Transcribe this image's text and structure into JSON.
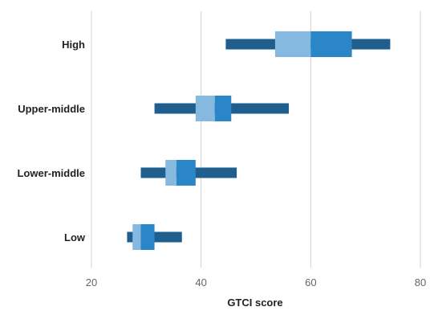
{
  "chart_data": {
    "type": "boxplot",
    "title": "",
    "xlabel": "GTCI score",
    "ylabel": "",
    "xlim": [
      20,
      80
    ],
    "xticks": [
      20,
      40,
      60,
      80
    ],
    "grid": true,
    "categories": [
      "High",
      "Upper-middle",
      "Lower-middle",
      "Low"
    ],
    "boxes": [
      {
        "category": "High",
        "min": 44.5,
        "q1": 53.5,
        "median": 60,
        "q3": 67.5,
        "max": 74.5
      },
      {
        "category": "Upper-middle",
        "min": 31.5,
        "q1": 39,
        "median": 42.5,
        "q3": 45.5,
        "max": 56
      },
      {
        "category": "Lower-middle",
        "min": 29,
        "q1": 33.5,
        "median": 35.5,
        "q3": 39,
        "max": 46.5
      },
      {
        "category": "Low",
        "min": 26.5,
        "q1": 27.5,
        "median": 29,
        "q3": 31.5,
        "max": 36.5
      }
    ],
    "colors": {
      "whisker": "#1f5f8f",
      "lower_box": "#85b9e0",
      "upper_box": "#2b86c7",
      "grid": "#d0d0d0"
    }
  }
}
